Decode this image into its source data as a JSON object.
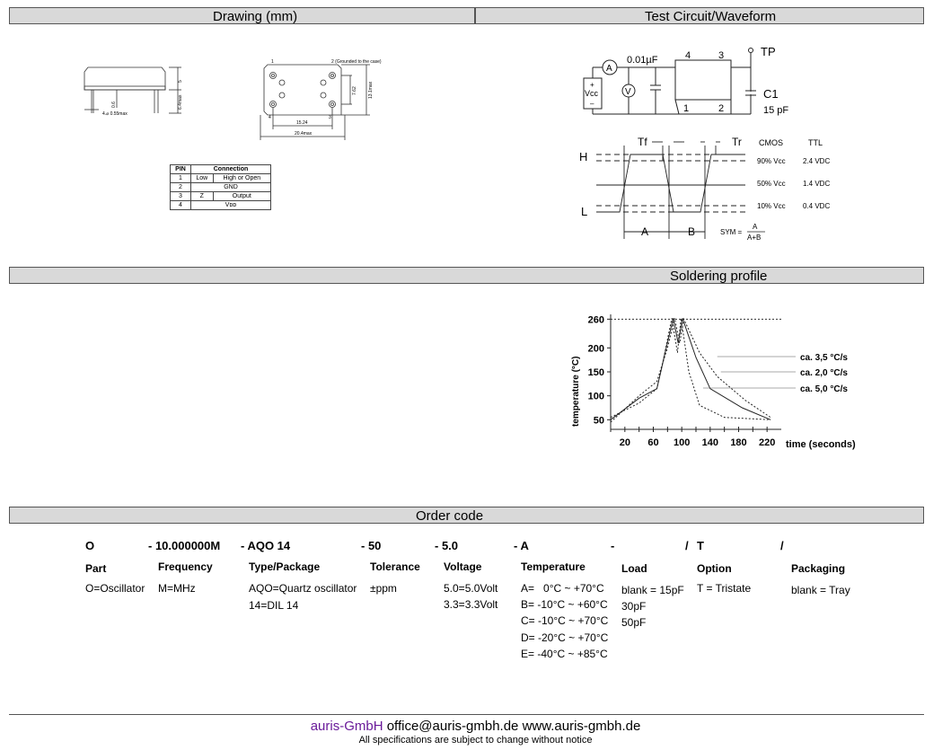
{
  "sections": {
    "drawing": "Drawing (mm)",
    "test_circuit": "Test Circuit/Waveform",
    "soldering": "Soldering profile",
    "order_code": "Order code"
  },
  "drawing": {
    "pin1": "1",
    "pin2_note": "2 (Grounded to the case)",
    "pin3": "3",
    "pin4": "4",
    "dim_1524": "15.24",
    "dim_204": "20.4max",
    "dim_762": "7.62",
    "dim_131": "13.1max",
    "dim_5": "5",
    "dim_06": "0.6",
    "dim_445": "6.4max",
    "dim_pin": "4.⌀ 0.55max"
  },
  "pin_table": {
    "headers": [
      "PIN",
      "Connection"
    ],
    "rows": [
      [
        "1",
        "Low",
        "High or Open"
      ],
      [
        "2",
        "GND",
        ""
      ],
      [
        "3",
        "Z",
        "Output"
      ],
      [
        "4",
        "Vᴅᴅ",
        ""
      ]
    ]
  },
  "circuit": {
    "tp": "TP",
    "cap": "0.01µF",
    "c1": "C1",
    "c1_val": "15 pF",
    "pin4": "4",
    "pin3": "3",
    "pin1": "1",
    "pin2": "2",
    "ammeter": "A",
    "voltmeter": "V",
    "vcc": "Vcc",
    "plus": "+",
    "minus": "–"
  },
  "waveform": {
    "h": "H",
    "l": "L",
    "tf": "Tf",
    "tr": "Tr",
    "cmos": "CMOS",
    "ttl": "TTL",
    "r90": "90% Vcc",
    "r50": "50% Vcc",
    "r10": "10% Vcc",
    "v90": "2.4  VDC",
    "v50": "1.4  VDC",
    "v10": "0.4  VDC",
    "a": "A",
    "b": "B",
    "sym": "SYM =",
    "sym_num": "A",
    "sym_den": "A+B"
  },
  "chart_data": {
    "type": "line",
    "title": "",
    "xlabel": "time (seconds)",
    "ylabel": "temperature (°C)",
    "xlim": [
      0,
      240
    ],
    "ylim": [
      30,
      270
    ],
    "xticks": [
      20,
      60,
      100,
      140,
      180,
      220
    ],
    "yticks": [
      50,
      100,
      150,
      200,
      260
    ],
    "peak_line": 260,
    "series": [
      {
        "name": "ca. 3,5 °C/s",
        "style": "dotted",
        "points": [
          [
            0,
            45
          ],
          [
            40,
            100
          ],
          [
            65,
            130
          ],
          [
            80,
            200
          ],
          [
            90,
            262
          ],
          [
            97,
            210
          ],
          [
            103,
            260
          ],
          [
            125,
            190
          ],
          [
            150,
            140
          ],
          [
            190,
            90
          ],
          [
            225,
            55
          ]
        ]
      },
      {
        "name": "ca. 2,0 °C/s",
        "style": "solid",
        "points": [
          [
            0,
            50
          ],
          [
            40,
            95
          ],
          [
            65,
            115
          ],
          [
            75,
            180
          ],
          [
            88,
            262
          ],
          [
            95,
            210
          ],
          [
            101,
            262
          ],
          [
            120,
            180
          ],
          [
            140,
            115
          ],
          [
            185,
            75
          ],
          [
            225,
            50
          ]
        ]
      },
      {
        "name": "ca. 5,0 °C/s",
        "style": "dotted",
        "points": [
          [
            0,
            55
          ],
          [
            40,
            85
          ],
          [
            65,
            115
          ],
          [
            72,
            160
          ],
          [
            86,
            262
          ],
          [
            94,
            190
          ],
          [
            99,
            262
          ],
          [
            110,
            150
          ],
          [
            125,
            80
          ],
          [
            160,
            55
          ],
          [
            225,
            50
          ]
        ]
      }
    ]
  },
  "order_code": {
    "codes": [
      "O",
      "- 10.000000M",
      "- AQO 14",
      "- 50",
      "- 5.0",
      "- A",
      "-",
      "/",
      "T",
      "/"
    ],
    "heads": [
      "Part",
      "Frequency",
      "Type/Package",
      "Tolerance",
      "Voltage",
      "Temperature",
      "Load",
      "Option",
      "Packaging"
    ],
    "part": [
      "O=Oscillator"
    ],
    "frequency": [
      "M=MHz"
    ],
    "type_package": [
      "AQO=Quartz oscillator",
      "14=DIL 14"
    ],
    "tolerance": [
      "±ppm"
    ],
    "voltage": [
      "5.0=5.0Volt",
      "3.3=3.3Volt"
    ],
    "temperature": [
      "A=   0°C ~ +70°C",
      "B= -10°C ~ +60°C",
      "C= -10°C ~ +70°C",
      "D= -20°C ~ +70°C",
      "E= -40°C ~ +85°C"
    ],
    "load": [
      "blank = 15pF",
      "30pF",
      "50pF"
    ],
    "option": [
      "T = Tristate"
    ],
    "packaging": [
      "blank = Tray"
    ]
  },
  "footer": {
    "brand": "auris-GmbH",
    "contact": " office@auris-gmbh.de  www.auris-gmbh.de",
    "notice": "All specifications are subject to change without notice",
    "brand_color": "#6a1b9a"
  }
}
